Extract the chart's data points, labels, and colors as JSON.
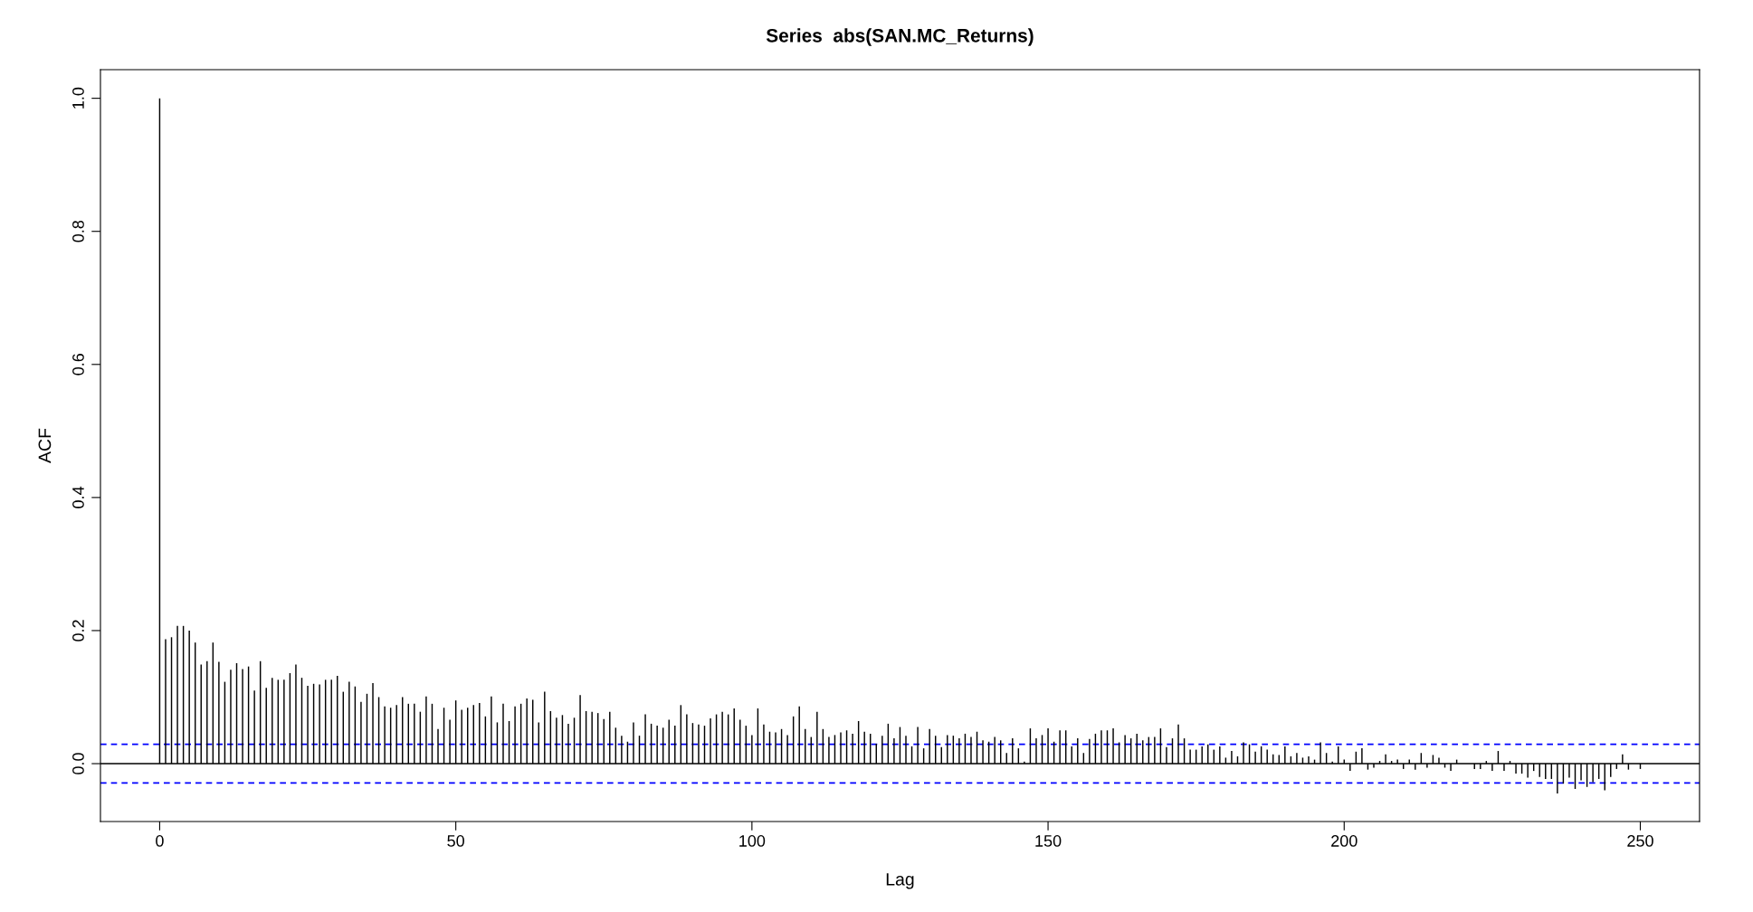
{
  "chart_data": {
    "type": "bar",
    "title": "Series  abs(SAN.MC_Returns)",
    "xlabel": "Lag",
    "ylabel": "ACF",
    "x": [
      0,
      1,
      2,
      3,
      4,
      5,
      6,
      7,
      8,
      9,
      10,
      11,
      12,
      13,
      14,
      15,
      16,
      17,
      18,
      19,
      20,
      21,
      22,
      23,
      24,
      25,
      26,
      27,
      28,
      29,
      30,
      31,
      32,
      33,
      34,
      35,
      36,
      37,
      38,
      39,
      40,
      41,
      42,
      43,
      44,
      45,
      46,
      47,
      48,
      49,
      50,
      51,
      52,
      53,
      54,
      55,
      56,
      57,
      58,
      59,
      60,
      61,
      62,
      63,
      64,
      65,
      66,
      67,
      68,
      69,
      70,
      71,
      72,
      73,
      74,
      75,
      76,
      77,
      78,
      79,
      80,
      81,
      82,
      83,
      84,
      85,
      86,
      87,
      88,
      89,
      90,
      91,
      92,
      93,
      94,
      95,
      96,
      97,
      98,
      99,
      100,
      101,
      102,
      103,
      104,
      105,
      106,
      107,
      108,
      109,
      110,
      111,
      112,
      113,
      114,
      115,
      116,
      117,
      118,
      119,
      120,
      121,
      122,
      123,
      124,
      125,
      126,
      127,
      128,
      129,
      130,
      131,
      132,
      133,
      134,
      135,
      136,
      137,
      138,
      139,
      140,
      141,
      142,
      143,
      144,
      145,
      146,
      147,
      148,
      149,
      150,
      151,
      152,
      153,
      154,
      155,
      156,
      157,
      158,
      159,
      160,
      161,
      162,
      163,
      164,
      165,
      166,
      167,
      168,
      169,
      170,
      171,
      172,
      173,
      174,
      175,
      176,
      177,
      178,
      179,
      180,
      181,
      182,
      183,
      184,
      185,
      186,
      187,
      188,
      189,
      190,
      191,
      192,
      193,
      194,
      195,
      196,
      197,
      198,
      199,
      200,
      201,
      202,
      203,
      204,
      205,
      206,
      207,
      208,
      209,
      210,
      211,
      212,
      213,
      214,
      215,
      216,
      217,
      218,
      219,
      220,
      221,
      222,
      223,
      224,
      225,
      226,
      227,
      228,
      229,
      230,
      231,
      232,
      233,
      234,
      235,
      236,
      237,
      238,
      239,
      240,
      241,
      242,
      243,
      244,
      245,
      246,
      247,
      248,
      249,
      250
    ],
    "series": [
      {
        "color": "#000000",
        "values": [
          1.0,
          0.187,
          0.19,
          0.207,
          0.207,
          0.2,
          0.182,
          0.149,
          0.154,
          0.182,
          0.153,
          0.123,
          0.141,
          0.151,
          0.142,
          0.146,
          0.11,
          0.154,
          0.114,
          0.129,
          0.126,
          0.126,
          0.136,
          0.149,
          0.129,
          0.117,
          0.12,
          0.119,
          0.126,
          0.126,
          0.132,
          0.108,
          0.123,
          0.116,
          0.093,
          0.105,
          0.121,
          0.1,
          0.086,
          0.084,
          0.088,
          0.1,
          0.09,
          0.09,
          0.078,
          0.101,
          0.09,
          0.052,
          0.084,
          0.066,
          0.095,
          0.081,
          0.084,
          0.088,
          0.091,
          0.071,
          0.101,
          0.062,
          0.09,
          0.064,
          0.086,
          0.09,
          0.098,
          0.096,
          0.062,
          0.108,
          0.079,
          0.069,
          0.073,
          0.06,
          0.069,
          0.103,
          0.079,
          0.078,
          0.076,
          0.067,
          0.078,
          0.054,
          0.042,
          0.033,
          0.062,
          0.042,
          0.074,
          0.06,
          0.057,
          0.054,
          0.066,
          0.057,
          0.088,
          0.074,
          0.061,
          0.059,
          0.057,
          0.068,
          0.074,
          0.078,
          0.074,
          0.083,
          0.066,
          0.057,
          0.043,
          0.083,
          0.059,
          0.048,
          0.047,
          0.052,
          0.043,
          0.071,
          0.086,
          0.052,
          0.04,
          0.078,
          0.052,
          0.04,
          0.043,
          0.047,
          0.05,
          0.045,
          0.064,
          0.048,
          0.045,
          0.03,
          0.042,
          0.06,
          0.038,
          0.055,
          0.042,
          0.026,
          0.055,
          0.023,
          0.052,
          0.042,
          0.025,
          0.043,
          0.042,
          0.038,
          0.045,
          0.04,
          0.048,
          0.035,
          0.033,
          0.04,
          0.035,
          0.016,
          0.038,
          0.023,
          0.003,
          0.053,
          0.038,
          0.043,
          0.053,
          0.033,
          0.05,
          0.05,
          0.026,
          0.038,
          0.016,
          0.037,
          0.045,
          0.05,
          0.05,
          0.053,
          0.032,
          0.043,
          0.038,
          0.045,
          0.035,
          0.04,
          0.04,
          0.053,
          0.025,
          0.038,
          0.059,
          0.038,
          0.021,
          0.021,
          0.026,
          0.029,
          0.021,
          0.026,
          0.009,
          0.019,
          0.011,
          0.032,
          0.029,
          0.018,
          0.026,
          0.021,
          0.014,
          0.013,
          0.026,
          0.011,
          0.016,
          0.009,
          0.011,
          0.006,
          0.032,
          0.016,
          0.003,
          0.026,
          0.006,
          -0.011,
          0.018,
          0.023,
          -0.009,
          -0.006,
          0.004,
          0.014,
          0.004,
          0.006,
          -0.008,
          0.006,
          -0.009,
          0.016,
          -0.006,
          0.013,
          0.009,
          -0.006,
          -0.011,
          0.006,
          0.0,
          0.0,
          -0.008,
          -0.008,
          0.004,
          -0.011,
          0.019,
          -0.011,
          0.004,
          -0.015,
          -0.015,
          -0.021,
          -0.011,
          -0.02,
          -0.023,
          -0.023,
          -0.045,
          -0.03,
          -0.021,
          -0.038,
          -0.025,
          -0.035,
          -0.028,
          -0.023,
          -0.04,
          -0.02,
          -0.008,
          0.014,
          -0.009,
          0.0,
          -0.008
        ]
      }
    ],
    "xlim": [
      -10,
      260
    ],
    "xticks": [
      0,
      50,
      100,
      150,
      200,
      250
    ],
    "ylim": [
      -0.087,
      1.043
    ],
    "yticks": [
      {
        "value": 0,
        "label": "0.0"
      },
      {
        "value": 0.2,
        "label": "0.2"
      },
      {
        "value": 0.4,
        "label": "0.4"
      },
      {
        "value": 0.6,
        "label": "0.6"
      },
      {
        "value": 0.8,
        "label": "0.8"
      },
      {
        "value": 1.0,
        "label": "1.0"
      }
    ],
    "ref_lines": [
      {
        "axis": "y",
        "value": 0,
        "color": "#000000",
        "line_style": "solid"
      },
      {
        "axis": "y",
        "value": 0.029,
        "color": "#0000ff",
        "line_style": "dashed"
      },
      {
        "axis": "y",
        "value": -0.029,
        "color": "#0000ff",
        "line_style": "dashed"
      }
    ],
    "grid": false,
    "legend": false
  }
}
